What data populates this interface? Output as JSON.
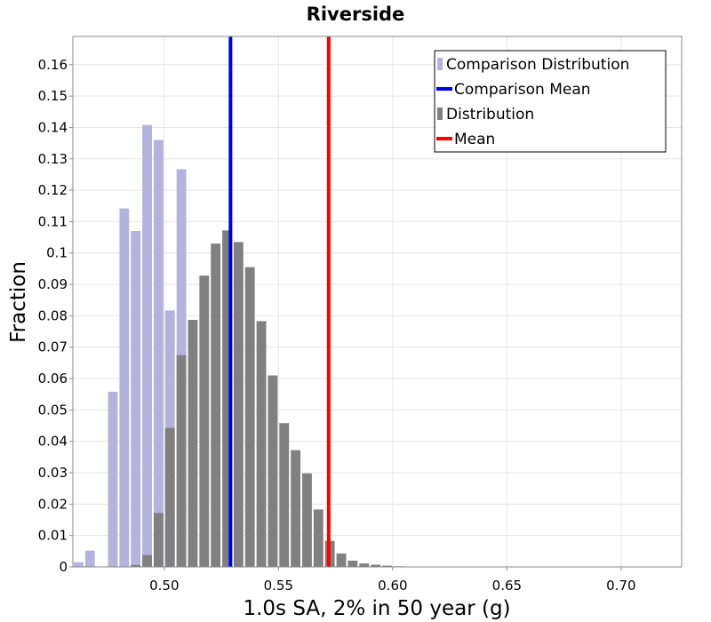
{
  "chart_data": {
    "type": "bar",
    "title": "Riverside",
    "xlabel": "1.0s SA, 2% in 50 year (g)",
    "ylabel": "Fraction",
    "xlim": [
      0.46,
      0.7265
    ],
    "ylim": [
      0,
      0.169
    ],
    "bin_width": 0.005,
    "x_ticks": [
      0.5,
      0.55,
      0.6,
      0.65,
      0.7
    ],
    "x_tick_labels": [
      "0.50",
      "0.55",
      "0.60",
      "0.65",
      "0.70"
    ],
    "y_ticks": [
      0,
      0.01,
      0.02,
      0.03,
      0.04,
      0.05,
      0.06,
      0.07,
      0.08,
      0.09,
      0.1,
      0.11,
      0.12,
      0.13,
      0.14,
      0.15,
      0.16
    ],
    "y_tick_labels": [
      "0",
      "0.01",
      "0.02",
      "0.03",
      "0.04",
      "0.05",
      "0.06",
      "0.07",
      "0.08",
      "0.09",
      "0.1",
      "0.11",
      "0.12",
      "0.13",
      "0.14",
      "0.15",
      "0.16"
    ],
    "grid": true,
    "legend_position": "top-right",
    "series": [
      {
        "name": "Comparison Distribution",
        "kind": "histogram",
        "color": "#b3b3dd",
        "x": [
          0.4625,
          0.4675,
          0.4725,
          0.4775,
          0.4825,
          0.4875,
          0.4925,
          0.4975,
          0.5025,
          0.5075,
          0.5125,
          0.5175,
          0.5225,
          0.5275,
          0.5325,
          0.5375,
          0.5425,
          0.5475,
          0.5525
        ],
        "values": [
          0.0015,
          0.0052,
          0.0,
          0.0558,
          0.1142,
          0.107,
          0.1408,
          0.136,
          0.0817,
          0.1267,
          0.0,
          0.0,
          0.0,
          0.0,
          0.0,
          0.0,
          0.0,
          0.0,
          0.0
        ]
      },
      {
        "name": "Distribution",
        "kind": "histogram",
        "color": "#808080",
        "x": [
          0.4875,
          0.4925,
          0.4975,
          0.5025,
          0.5075,
          0.5125,
          0.5175,
          0.5225,
          0.5275,
          0.5325,
          0.5375,
          0.5425,
          0.5475,
          0.5525,
          0.5575,
          0.5625,
          0.5675,
          0.5725,
          0.5775,
          0.5825,
          0.5875,
          0.5925,
          0.5975,
          0.6025,
          0.6075,
          0.6125,
          0.6175,
          0.6225,
          0.6275,
          0.6325,
          0.6375,
          0.6425
        ],
        "values": [
          0.0006,
          0.0038,
          0.0172,
          0.0443,
          0.0675,
          0.0787,
          0.0928,
          0.103,
          0.1072,
          0.1035,
          0.0955,
          0.0783,
          0.061,
          0.0458,
          0.0372,
          0.0298,
          0.0183,
          0.0083,
          0.0043,
          0.002,
          0.0011,
          0.0007,
          0.0004,
          0.0002,
          0.0001,
          0.0001,
          0.0,
          0.0,
          0.0,
          0.0,
          0.0,
          0.0
        ]
      },
      {
        "name": "Comparison Mean",
        "kind": "vline",
        "color": "#0000e6",
        "x": 0.529
      },
      {
        "name": "Mean",
        "kind": "vline",
        "color": "#ff0000",
        "x": 0.572
      }
    ]
  }
}
